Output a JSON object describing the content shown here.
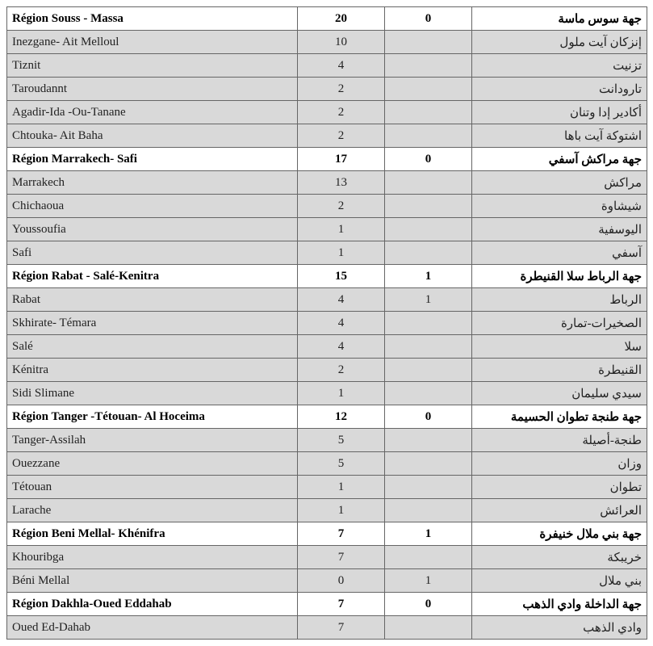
{
  "rows": [
    {
      "type": "header",
      "fr": "Région Souss - Massa",
      "v1": "20",
      "v2": "0",
      "ar": "جهة سوس ماسة"
    },
    {
      "type": "data",
      "fr": "Inezgane- Ait Melloul",
      "v1": "10",
      "v2": "",
      "ar": "إنزكان آيت ملول"
    },
    {
      "type": "data",
      "fr": "Tiznit",
      "v1": "4",
      "v2": "",
      "ar": "تزنيت"
    },
    {
      "type": "data",
      "fr": "Taroudannt",
      "v1": "2",
      "v2": "",
      "ar": "تارودانت"
    },
    {
      "type": "data",
      "fr": "Agadir-Ida -Ou-Tanane",
      "v1": "2",
      "v2": "",
      "ar": "أكادير إدا وتنان"
    },
    {
      "type": "data",
      "fr": "Chtouka- Ait Baha",
      "v1": "2",
      "v2": "",
      "ar": "اشتوكة آيت باها"
    },
    {
      "type": "header",
      "fr": "Région Marrakech- Safi",
      "v1": "17",
      "v2": "0",
      "ar": "جهة مراكش آسفي"
    },
    {
      "type": "data",
      "fr": "Marrakech",
      "v1": "13",
      "v2": "",
      "ar": "مراكش"
    },
    {
      "type": "data",
      "fr": "Chichaoua",
      "v1": "2",
      "v2": "",
      "ar": "شيشاوة"
    },
    {
      "type": "data",
      "fr": "Youssoufia",
      "v1": "1",
      "v2": "",
      "ar": "اليوسفية"
    },
    {
      "type": "data",
      "fr": "Safi",
      "v1": "1",
      "v2": "",
      "ar": "آسفي"
    },
    {
      "type": "header",
      "fr": "Région Rabat - Salé-Kenitra",
      "v1": "15",
      "v2": "1",
      "ar": "جهة الرباط سلا القنيطرة"
    },
    {
      "type": "data",
      "fr": "Rabat",
      "v1": "4",
      "v2": "1",
      "ar": "الرباط"
    },
    {
      "type": "data",
      "fr": "Skhirate- Témara",
      "v1": "4",
      "v2": "",
      "ar": "الصخيرات-تمارة"
    },
    {
      "type": "data",
      "fr": "Salé",
      "v1": "4",
      "v2": "",
      "ar": "سلا"
    },
    {
      "type": "data",
      "fr": "Kénitra",
      "v1": "2",
      "v2": "",
      "ar": "القنيطرة"
    },
    {
      "type": "data",
      "fr": "Sidi Slimane",
      "v1": "1",
      "v2": "",
      "ar": "سيدي سليمان"
    },
    {
      "type": "header",
      "fr": "Région Tanger -Tétouan- Al Hoceima",
      "v1": "12",
      "v2": "0",
      "ar": "جهة طنجة تطوان الحسيمة"
    },
    {
      "type": "data",
      "fr": "Tanger-Assilah",
      "v1": "5",
      "v2": "",
      "ar": "طنجة-أصيلة"
    },
    {
      "type": "data",
      "fr": "Ouezzane",
      "v1": "5",
      "v2": "",
      "ar": "وزان"
    },
    {
      "type": "data",
      "fr": "Tétouan",
      "v1": "1",
      "v2": "",
      "ar": "تطوان"
    },
    {
      "type": "data",
      "fr": "Larache",
      "v1": "1",
      "v2": "",
      "ar": "العرائش"
    },
    {
      "type": "header",
      "fr": "Région Beni Mellal- Khénifra",
      "v1": "7",
      "v2": "1",
      "ar": "جهة بني ملال خنيفرة"
    },
    {
      "type": "data",
      "fr": "Khouribga",
      "v1": "7",
      "v2": "",
      "ar": "خريبكة"
    },
    {
      "type": "data",
      "fr": "Béni Mellal",
      "v1": "0",
      "v2": "1",
      "ar": "بني ملال"
    },
    {
      "type": "header",
      "fr": "Région Dakhla-Oued Eddahab",
      "v1": "7",
      "v2": "0",
      "ar": "جهة الداخلة وادي الذهب"
    },
    {
      "type": "data",
      "fr": "Oued Ed-Dahab",
      "v1": "7",
      "v2": "",
      "ar": "وادي الذهب"
    }
  ]
}
